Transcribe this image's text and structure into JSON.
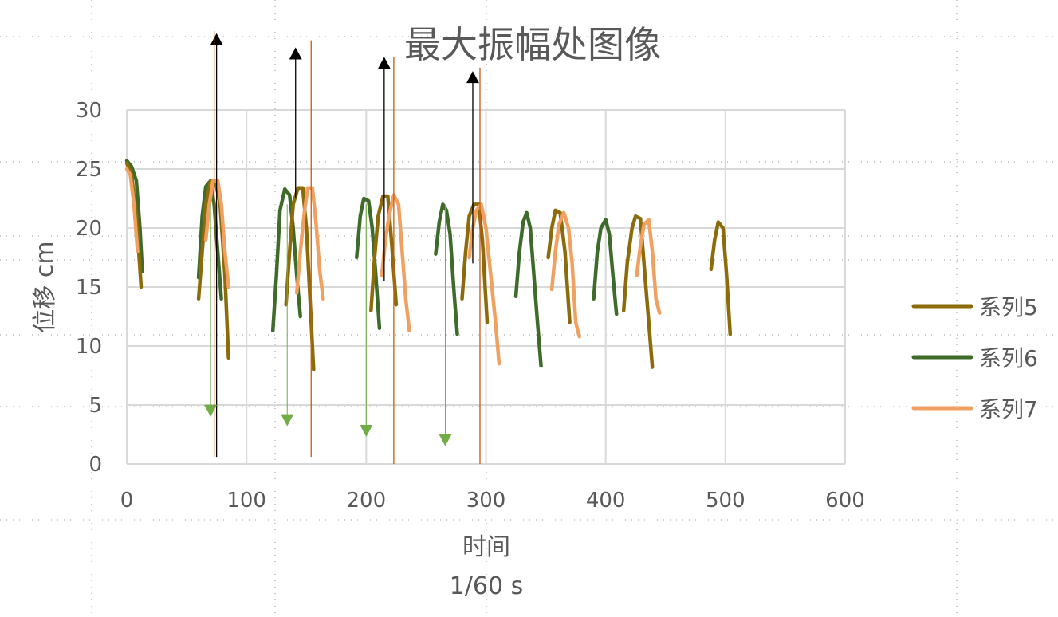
{
  "chart_data": {
    "type": "line",
    "title": "最大振幅处图像",
    "xlabel": "时间",
    "xunit": "1/60 s",
    "ylabel": "位移 cm",
    "xlim": [
      0,
      600
    ],
    "ylim": [
      0,
      30
    ],
    "x_ticks": [
      "0",
      "100",
      "200",
      "300",
      "400",
      "500",
      "600"
    ],
    "y_ticks": [
      "0",
      "5",
      "10",
      "15",
      "20",
      "25",
      "30"
    ],
    "grid": true,
    "legend_position": "right",
    "series": [
      {
        "name": "系列5",
        "color": "#8B6B0A",
        "segments": [
          [
            [
              0,
              25.5
            ],
            [
              4,
              24.5
            ],
            [
              8,
              21
            ],
            [
              12,
              15
            ]
          ],
          [
            [
              60,
              14
            ],
            [
              63,
              18
            ],
            [
              66,
              22
            ],
            [
              70,
              24
            ],
            [
              74,
              24
            ],
            [
              78,
              22
            ],
            [
              82,
              16
            ],
            [
              85,
              9
            ]
          ],
          [
            [
              133,
              13.5
            ],
            [
              136,
              18
            ],
            [
              139,
              22
            ],
            [
              143,
              23.4
            ],
            [
              147,
              23.4
            ],
            [
              150,
              20
            ],
            [
              153,
              14
            ],
            [
              156,
              8
            ]
          ],
          [
            [
              204,
              13
            ],
            [
              207,
              17.5
            ],
            [
              210,
              21
            ],
            [
              214,
              22.7
            ],
            [
              218,
              22.7
            ],
            [
              221,
              19
            ],
            [
              225,
              13.5
            ]
          ],
          [
            [
              280,
              14
            ],
            [
              283,
              18
            ],
            [
              286,
              21
            ],
            [
              290,
              22
            ],
            [
              294,
              22
            ],
            [
              297,
              19
            ],
            [
              301,
              12
            ]
          ],
          [
            [
              352,
              17.5
            ],
            [
              355,
              20
            ],
            [
              358,
              21.5
            ],
            [
              362,
              21.3
            ],
            [
              366,
              18
            ],
            [
              370,
              12
            ]
          ],
          [
            [
              415,
              13
            ],
            [
              418,
              17
            ],
            [
              422,
              20
            ],
            [
              425,
              21
            ],
            [
              429,
              20.8
            ],
            [
              432,
              17
            ],
            [
              436,
              12
            ],
            [
              439,
              8.2
            ]
          ],
          [
            [
              488,
              16.5
            ],
            [
              491,
              19
            ],
            [
              494,
              20.5
            ],
            [
              498,
              20
            ],
            [
              501,
              16
            ],
            [
              504,
              11
            ]
          ]
        ]
      },
      {
        "name": "系列6",
        "color": "#3E6B2A",
        "segments": [
          [
            [
              0,
              25.7
            ],
            [
              4,
              25.2
            ],
            [
              8,
              24
            ],
            [
              11,
              20
            ],
            [
              13,
              16.3
            ]
          ],
          [
            [
              60,
              15.8
            ],
            [
              63,
              21
            ],
            [
              66,
              23.5
            ],
            [
              70,
              24
            ],
            [
              73,
              22
            ],
            [
              76,
              18
            ],
            [
              79,
              14
            ]
          ],
          [
            [
              122,
              11.3
            ],
            [
              125,
              16
            ],
            [
              128,
              21.5
            ],
            [
              132,
              23.3
            ],
            [
              136,
              22.8
            ],
            [
              139,
              20
            ],
            [
              142,
              16
            ],
            [
              145,
              12.5
            ]
          ],
          [
            [
              192,
              17.5
            ],
            [
              195,
              21
            ],
            [
              198,
              22.5
            ],
            [
              202,
              22.3
            ],
            [
              205,
              20
            ],
            [
              208,
              16
            ],
            [
              211,
              11.5
            ]
          ],
          [
            [
              258,
              17.8
            ],
            [
              261,
              20.5
            ],
            [
              264,
              22
            ],
            [
              267,
              21.5
            ],
            [
              270,
              19.5
            ],
            [
              273,
              15
            ],
            [
              276,
              11
            ]
          ],
          [
            [
              325,
              14.2
            ],
            [
              328,
              18
            ],
            [
              331,
              20.5
            ],
            [
              334,
              21.3
            ],
            [
              337,
              20
            ],
            [
              340,
              16
            ],
            [
              343,
              12
            ],
            [
              346,
              8.3
            ]
          ],
          [
            [
              390,
              14
            ],
            [
              393,
              18
            ],
            [
              396,
              20
            ],
            [
              400,
              20.7
            ],
            [
              403,
              19.5
            ],
            [
              406,
              16
            ],
            [
              409,
              12.7
            ]
          ]
        ]
      },
      {
        "name": "系列7",
        "color": "#F0A060",
        "segments": [
          [
            [
              0,
              25
            ],
            [
              3,
              24.5
            ],
            [
              6,
              22
            ],
            [
              9,
              18
            ]
          ],
          [
            [
              66,
              19
            ],
            [
              69,
              22
            ],
            [
              72,
              24
            ],
            [
              76,
              24
            ],
            [
              79,
              22
            ],
            [
              82,
              18
            ],
            [
              85,
              15
            ]
          ],
          [
            [
              142,
              14.5
            ],
            [
              145,
              18
            ],
            [
              148,
              21
            ],
            [
              151,
              23.4
            ],
            [
              155,
              23.4
            ],
            [
              158,
              20.5
            ],
            [
              161,
              16.5
            ],
            [
              164,
              14
            ]
          ],
          [
            [
              213,
              16
            ],
            [
              216,
              19
            ],
            [
              219,
              21
            ],
            [
              223,
              22.8
            ],
            [
              227,
              22
            ],
            [
              230,
              18
            ],
            [
              233,
              14
            ],
            [
              236,
              11.3
            ]
          ],
          [
            [
              286,
              17.5
            ],
            [
              289,
              20
            ],
            [
              292,
              21.5
            ],
            [
              296,
              22
            ],
            [
              300,
              20
            ],
            [
              304,
              16
            ],
            [
              308,
              12
            ],
            [
              311,
              8.5
            ]
          ],
          [
            [
              355,
              14.8
            ],
            [
              358,
              18
            ],
            [
              361,
              20.3
            ],
            [
              365,
              21.3
            ],
            [
              369,
              20
            ],
            [
              372,
              17
            ],
            [
              375,
              12
            ],
            [
              378,
              10.8
            ]
          ],
          [
            [
              426,
              16
            ],
            [
              429,
              18.5
            ],
            [
              432,
              20.3
            ],
            [
              436,
              20.7
            ],
            [
              439,
              18
            ],
            [
              442,
              14
            ],
            [
              445,
              12.8
            ]
          ]
        ]
      }
    ],
    "annotations": [
      {
        "type": "arrow-up",
        "color": "#000000",
        "x": 75,
        "y_from": 0.6,
        "y_to": 36.5
      },
      {
        "type": "arrow-up",
        "color": "#000000",
        "x": 141,
        "y_from": 22.5,
        "y_to": 35.3
      },
      {
        "type": "arrow-up",
        "color": "#000000",
        "x": 215,
        "y_from": 15.5,
        "y_to": 34.5
      },
      {
        "type": "arrow-up",
        "color": "#000000",
        "x": 289,
        "y_from": 17,
        "y_to": 33.3
      },
      {
        "type": "arrow-down",
        "color": "#70AD47",
        "x": 70,
        "y_from": 22,
        "y_to": 4
      },
      {
        "type": "arrow-down",
        "color": "#70AD47",
        "x": 134,
        "y_from": 22,
        "y_to": 3.2
      },
      {
        "type": "arrow-down",
        "color": "#70AD47",
        "x": 200,
        "y_from": 22,
        "y_to": 2.3
      },
      {
        "type": "arrow-down",
        "color": "#70AD47",
        "x": 266,
        "y_from": 22,
        "y_to": 1.5
      },
      {
        "type": "vline",
        "color": "#C55A11",
        "x": 73,
        "y_from": 0.6,
        "y_to": 36.7
      },
      {
        "type": "vline",
        "color": "#C55A11",
        "x": 154,
        "y_from": 0.6,
        "y_to": 35.9
      },
      {
        "type": "vline",
        "color": "#C55A11",
        "x": 223,
        "y_from": 0,
        "y_to": 34.5
      },
      {
        "type": "vline",
        "color": "#C55A11",
        "x": 295,
        "y_from": 0,
        "y_to": 33.6
      }
    ]
  }
}
